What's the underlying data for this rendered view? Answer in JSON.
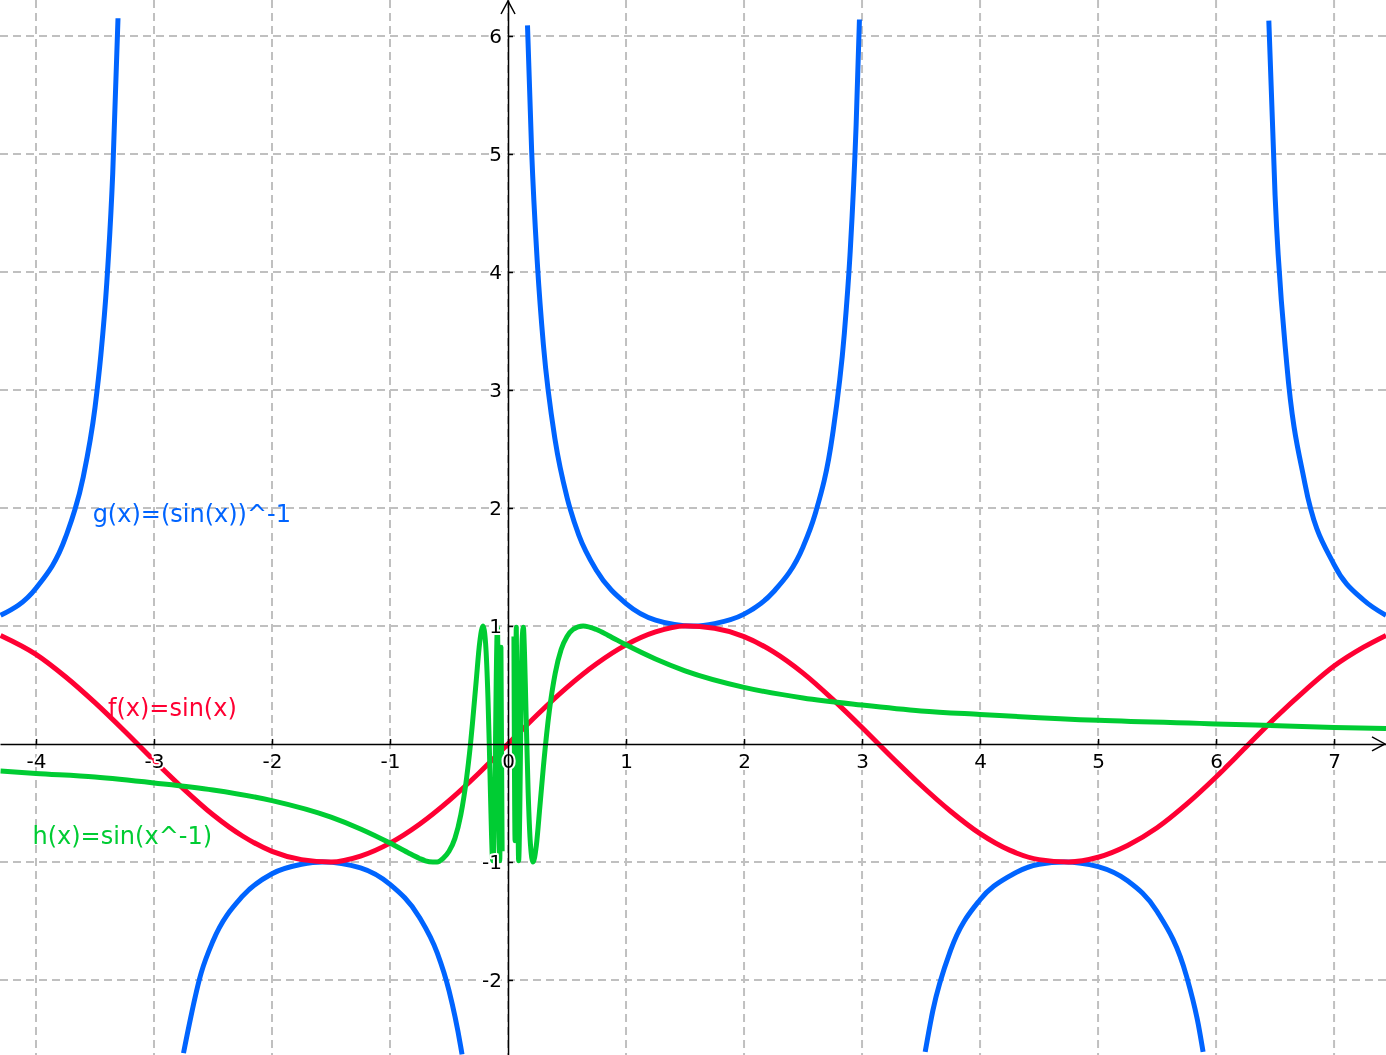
{
  "chart_data": {
    "type": "line",
    "xlim": [
      -4.305,
      7.44
    ],
    "ylim": [
      -2.636,
      6.305
    ],
    "xticks": [
      -4,
      -3,
      -2,
      -1,
      0,
      1,
      2,
      3,
      4,
      5,
      6,
      7
    ],
    "yticks": [
      -2,
      -1,
      1,
      2,
      3,
      4,
      5,
      6
    ],
    "grid": true,
    "marker": "none",
    "line_style": "solid",
    "series": [
      {
        "name": "g(x)=(sin(x))^-1",
        "color": "#0064ff",
        "x": [
          -4.3,
          -4.0,
          -3.75,
          -3.6,
          -3.5,
          -3.45,
          -3.4,
          -3.35,
          -3.305,
          -3.0,
          -2.75,
          -2.6,
          -2.5,
          -2.25,
          -2.0,
          -1.75,
          -1.571,
          -1.25,
          -1.0,
          -0.75,
          -0.6,
          -0.5,
          -0.4,
          -0.39,
          0,
          0.165,
          0.2,
          0.25,
          0.3,
          0.4,
          0.5,
          0.6,
          0.75,
          1.0,
          1.25,
          1.571,
          1.75,
          2.0,
          2.25,
          2.5,
          2.6,
          2.75,
          2.85,
          2.9,
          2.95,
          2.978,
          3.2,
          3.535,
          3.6,
          3.75,
          4.0,
          4.25,
          4.5,
          4.712,
          5.0,
          5.25,
          5.5,
          5.75,
          5.85,
          5.89,
          6.2,
          6.447,
          6.5,
          6.6,
          6.75,
          7.0,
          7.25,
          7.44
        ],
        "values": [
          1.09,
          1.32,
          1.75,
          2.26,
          2.85,
          3.3,
          3.91,
          4.83,
          6.15,
          null,
          -2.62,
          -1.94,
          -1.67,
          -1.29,
          -1.1,
          -1.02,
          -1.0,
          -1.05,
          -1.19,
          -1.47,
          -1.77,
          -2.09,
          -2.57,
          -2.63,
          null,
          6.09,
          5.03,
          4.05,
          3.38,
          2.57,
          2.09,
          1.77,
          1.47,
          1.19,
          1.05,
          1.0,
          1.02,
          1.1,
          1.29,
          1.67,
          1.94,
          2.62,
          3.48,
          4.18,
          5.25,
          6.14,
          null,
          -2.61,
          -2.26,
          -1.75,
          -1.32,
          -1.12,
          -1.02,
          -1.0,
          -1.04,
          -1.16,
          -1.42,
          -1.97,
          -2.38,
          -2.61,
          null,
          6.13,
          4.65,
          3.21,
          2.22,
          1.52,
          1.22,
          1.09
        ]
      },
      {
        "name": "f(x)=sin(x)",
        "color": "#ff0033",
        "x": [
          -4.3,
          -4.0,
          -3.75,
          -3.5,
          -3.25,
          -3.0,
          -2.75,
          -2.5,
          -2.25,
          -2.0,
          -1.75,
          -1.5,
          -1.25,
          -1.0,
          -0.75,
          -0.5,
          -0.25,
          0,
          0.25,
          0.5,
          0.75,
          1.0,
          1.25,
          1.5,
          1.75,
          2.0,
          2.25,
          2.5,
          2.75,
          3.0,
          3.25,
          3.5,
          3.75,
          4.0,
          4.25,
          4.5,
          4.75,
          5.0,
          5.25,
          5.5,
          5.75,
          6.0,
          6.25,
          6.5,
          6.75,
          7.0,
          7.25,
          7.44
        ],
        "values": [
          0.92,
          0.76,
          0.57,
          0.35,
          0.11,
          -0.14,
          -0.38,
          -0.6,
          -0.78,
          -0.91,
          -0.98,
          -1.0,
          -0.95,
          -0.84,
          -0.68,
          -0.48,
          -0.25,
          0,
          0.25,
          0.48,
          0.68,
          0.84,
          0.95,
          1.0,
          0.98,
          0.91,
          0.78,
          0.6,
          0.38,
          0.14,
          -0.11,
          -0.35,
          -0.57,
          -0.76,
          -0.9,
          -0.98,
          -1.0,
          -0.96,
          -0.86,
          -0.71,
          -0.51,
          -0.28,
          -0.03,
          0.22,
          0.45,
          0.66,
          0.82,
          0.92
        ]
      },
      {
        "name": "h(x)=sin(x^-1)",
        "color": "#00cc33",
        "x": [
          -4.3,
          -4,
          -3.5,
          -3,
          -2.5,
          -2,
          -1.5,
          -1.25,
          -1,
          -0.85,
          -0.75,
          -0.7,
          -0.637,
          -0.6,
          -0.55,
          -0.5,
          -0.45,
          -0.4,
          -0.35,
          -0.318,
          -0.3,
          -0.27,
          -0.24,
          -0.212,
          -0.19,
          -0.17,
          -0.159,
          -0.15,
          -0.14,
          -0.13,
          -0.12,
          -0.11,
          -0.1,
          -0.09,
          -0.08,
          -0.07,
          -0.06,
          -0.05,
          0,
          0.05,
          0.06,
          0.07,
          0.08,
          0.09,
          0.1,
          0.11,
          0.12,
          0.13,
          0.14,
          0.15,
          0.17,
          0.19,
          0.212,
          0.24,
          0.27,
          0.3,
          0.35,
          0.4,
          0.45,
          0.5,
          0.55,
          0.637,
          0.75,
          0.85,
          1,
          1.25,
          1.5,
          2,
          2.5,
          3,
          3.5,
          4,
          5,
          6,
          7,
          7.44
        ],
        "values": [
          -0.23,
          -0.25,
          -0.28,
          -0.33,
          -0.39,
          -0.48,
          -0.62,
          -0.72,
          -0.84,
          -0.92,
          -0.97,
          -0.99,
          -1.0,
          -1.0,
          -0.97,
          -0.91,
          -0.8,
          -0.6,
          -0.28,
          0,
          0.19,
          0.53,
          0.86,
          1.0,
          0.85,
          0.39,
          0,
          -0.37,
          -0.76,
          -0.99,
          -0.89,
          -0.33,
          0.54,
          0.99,
          0.07,
          -0.99,
          0.82,
          -0.91,
          null,
          0.91,
          -0.82,
          0.99,
          -0.07,
          -0.99,
          -0.54,
          0.33,
          0.89,
          0.99,
          0.76,
          0.37,
          -0.39,
          -0.85,
          -1.0,
          -0.86,
          -0.53,
          -0.19,
          0.28,
          0.6,
          0.8,
          0.91,
          0.97,
          1.0,
          0.97,
          0.92,
          0.84,
          0.72,
          0.62,
          0.48,
          0.39,
          0.33,
          0.28,
          0.25,
          0.2,
          0.17,
          0.14,
          0.13
        ]
      }
    ]
  }
}
